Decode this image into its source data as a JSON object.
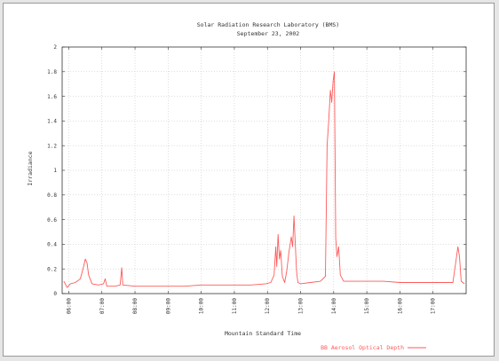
{
  "chart_data": {
    "type": "line",
    "title": "Solar Radiation Research Laboratory (BMS)",
    "subtitle": "September 23, 2002",
    "xlabel": "Mountain Standard Time",
    "ylabel": "Irradiance",
    "xlim": [
      5.8,
      18.0
    ],
    "ylim": [
      0,
      2
    ],
    "yticks": [
      0,
      0.2,
      0.4,
      0.6,
      0.8,
      1,
      1.2,
      1.4,
      1.6,
      1.8,
      2
    ],
    "ytick_labels": [
      "0",
      "0.2",
      "0.4",
      "0.6",
      "0.8",
      "1",
      "1.2",
      "1.4",
      "1.6",
      "1.8",
      "2"
    ],
    "xticks": [
      6,
      7,
      8,
      9,
      10,
      11,
      12,
      13,
      14,
      15,
      16,
      17
    ],
    "xtick_labels": [
      "06:00",
      "07:00",
      "08:00",
      "09:00",
      "10:00",
      "11:00",
      "12:00",
      "13:00",
      "14:00",
      "15:00",
      "16:00",
      "17:00"
    ],
    "grid": true,
    "legend_position": "bottom-right",
    "series": [
      {
        "name": "BB Aerosol Optical Depth",
        "color": "#ff5a5a",
        "points": [
          [
            5.85,
            0.1
          ],
          [
            5.95,
            0.05
          ],
          [
            6.05,
            0.08
          ],
          [
            6.2,
            0.09
          ],
          [
            6.35,
            0.12
          ],
          [
            6.45,
            0.22
          ],
          [
            6.5,
            0.28
          ],
          [
            6.55,
            0.25
          ],
          [
            6.6,
            0.15
          ],
          [
            6.7,
            0.08
          ],
          [
            6.9,
            0.07
          ],
          [
            7.05,
            0.08
          ],
          [
            7.1,
            0.12
          ],
          [
            7.15,
            0.06
          ],
          [
            7.4,
            0.06
          ],
          [
            7.55,
            0.07
          ],
          [
            7.6,
            0.21
          ],
          [
            7.63,
            0.07
          ],
          [
            8.0,
            0.06
          ],
          [
            8.5,
            0.06
          ],
          [
            9.0,
            0.06
          ],
          [
            9.5,
            0.06
          ],
          [
            10.0,
            0.07
          ],
          [
            10.5,
            0.07
          ],
          [
            11.0,
            0.07
          ],
          [
            11.5,
            0.07
          ],
          [
            11.95,
            0.08
          ],
          [
            12.1,
            0.09
          ],
          [
            12.2,
            0.15
          ],
          [
            12.25,
            0.38
          ],
          [
            12.28,
            0.22
          ],
          [
            12.32,
            0.48
          ],
          [
            12.36,
            0.28
          ],
          [
            12.4,
            0.35
          ],
          [
            12.45,
            0.14
          ],
          [
            12.52,
            0.09
          ],
          [
            12.58,
            0.18
          ],
          [
            12.65,
            0.34
          ],
          [
            12.72,
            0.46
          ],
          [
            12.76,
            0.38
          ],
          [
            12.8,
            0.63
          ],
          [
            12.84,
            0.4
          ],
          [
            12.88,
            0.18
          ],
          [
            12.92,
            0.09
          ],
          [
            13.0,
            0.08
          ],
          [
            13.3,
            0.09
          ],
          [
            13.6,
            0.1
          ],
          [
            13.75,
            0.14
          ],
          [
            13.8,
            1.2
          ],
          [
            13.85,
            1.4
          ],
          [
            13.9,
            1.65
          ],
          [
            13.94,
            1.55
          ],
          [
            13.98,
            1.72
          ],
          [
            14.02,
            1.8
          ],
          [
            14.06,
            0.45
          ],
          [
            14.1,
            0.3
          ],
          [
            14.15,
            0.38
          ],
          [
            14.2,
            0.15
          ],
          [
            14.3,
            0.1
          ],
          [
            14.6,
            0.1
          ],
          [
            15.0,
            0.1
          ],
          [
            15.5,
            0.1
          ],
          [
            16.0,
            0.09
          ],
          [
            16.5,
            0.09
          ],
          [
            17.0,
            0.09
          ],
          [
            17.4,
            0.09
          ],
          [
            17.6,
            0.09
          ],
          [
            17.7,
            0.28
          ],
          [
            17.75,
            0.38
          ],
          [
            17.8,
            0.3
          ],
          [
            17.85,
            0.1
          ],
          [
            17.95,
            0.08
          ]
        ]
      }
    ]
  }
}
